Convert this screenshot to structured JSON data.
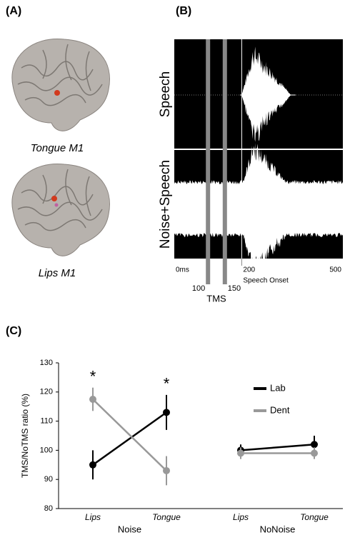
{
  "panel_a": {
    "label": "(A)",
    "captions": [
      "Tongue M1",
      "Lips M1"
    ]
  },
  "panel_b": {
    "label": "(B)",
    "rows": [
      "Speech",
      "Noise+Speech"
    ],
    "xlim": [
      0,
      500
    ],
    "xticks": [
      {
        "value": 0,
        "label": "0ms"
      },
      200,
      500
    ],
    "tms_pulses": [
      100,
      150
    ],
    "tms_label": "TMS",
    "onset_label": "Speech Onset"
  },
  "panel_c": {
    "label": "(C)"
  },
  "chart_data": {
    "type": "line",
    "ylabel": "TMS/NoTMS ratio (%)",
    "categories": [
      "Lips",
      "Tongue",
      "Lips",
      "Tongue"
    ],
    "groups": [
      "Noise",
      "NoNoise"
    ],
    "series": [
      {
        "name": "Lab",
        "color": "#000000",
        "values": [
          95,
          113,
          100,
          102
        ],
        "errors": [
          5,
          6,
          2,
          3
        ]
      },
      {
        "name": "Dent",
        "color": "#999999",
        "values": [
          117.5,
          93,
          99,
          99
        ],
        "errors": [
          4,
          5,
          2,
          2
        ]
      }
    ],
    "ylim": [
      80,
      130
    ],
    "yticks": [
      80,
      90,
      100,
      110,
      120,
      130
    ],
    "annotations": [
      "*",
      "*"
    ]
  }
}
